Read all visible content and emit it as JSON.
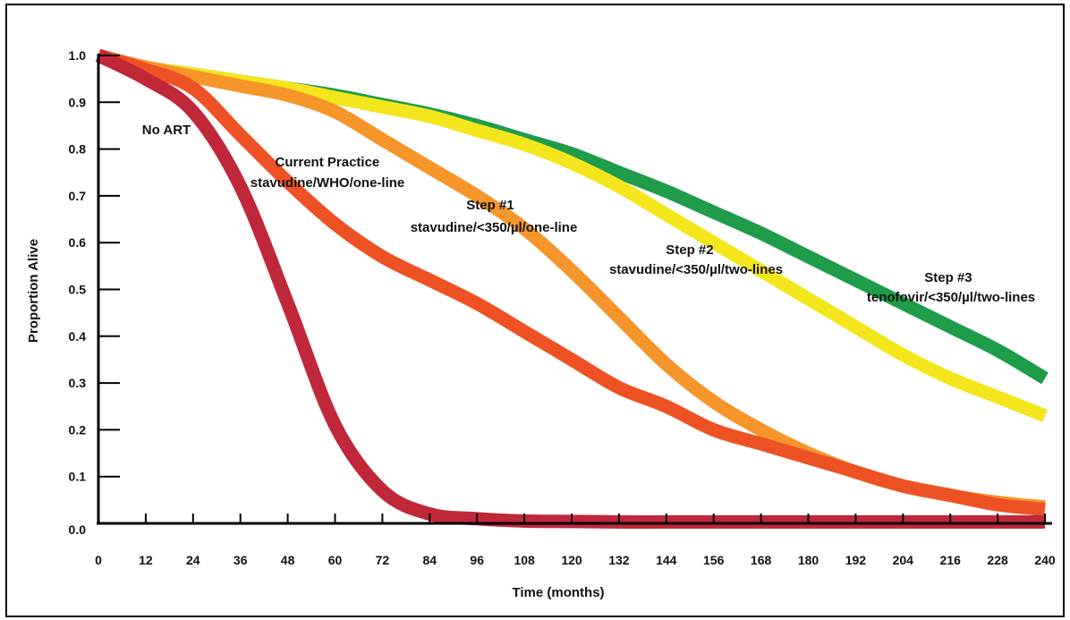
{
  "chart_data": {
    "type": "line",
    "xlabel": "Time (months)",
    "ylabel": "Proportion Alive",
    "xlim": [
      0,
      240
    ],
    "ylim": [
      0,
      1.0
    ],
    "x_ticks": [
      0,
      12,
      24,
      36,
      48,
      60,
      72,
      84,
      96,
      108,
      120,
      132,
      144,
      156,
      168,
      180,
      192,
      204,
      216,
      228,
      240
    ],
    "y_ticks": [
      "0.0",
      "0.1",
      "0.2",
      "0.3",
      "0.4",
      "0.5",
      "0.6",
      "0.7",
      "0.8",
      "0.9",
      "1.0"
    ],
    "grid": false,
    "legend": "inline labels",
    "x": [
      0,
      12,
      24,
      36,
      48,
      60,
      72,
      84,
      96,
      108,
      120,
      132,
      144,
      156,
      168,
      180,
      192,
      204,
      216,
      228,
      240
    ],
    "series": [
      {
        "label_lines": [
          "No ART"
        ],
        "color": "#c0283a",
        "values": [
          1.0,
          0.95,
          0.88,
          0.72,
          0.47,
          0.21,
          0.07,
          0.02,
          0.01,
          0.005,
          0.004,
          0.003,
          0.003,
          0.003,
          0.003,
          0.003,
          0.003,
          0.003,
          0.003,
          0.003,
          0.003
        ]
      },
      {
        "label_lines": [
          "Current Practice",
          "stavudine/WHO/one-line"
        ],
        "color": "#ee5224",
        "values": [
          1.0,
          0.97,
          0.93,
          0.83,
          0.73,
          0.64,
          0.57,
          0.52,
          0.47,
          0.41,
          0.35,
          0.29,
          0.25,
          0.2,
          0.17,
          0.14,
          0.11,
          0.08,
          0.06,
          0.04,
          0.03
        ]
      },
      {
        "label_lines": [
          "Step #1",
          "stavudine/<350/µl/one-line"
        ],
        "color": "#f5952a",
        "values": [
          1.0,
          0.975,
          0.955,
          0.935,
          0.915,
          0.88,
          0.82,
          0.76,
          0.7,
          0.63,
          0.54,
          0.44,
          0.34,
          0.26,
          0.2,
          0.15,
          0.11,
          0.08,
          0.06,
          0.045,
          0.035
        ]
      },
      {
        "label_lines": [
          "Step #2",
          "stavudine/<350/µl/two-lines"
        ],
        "color": "#f4e61c",
        "values": [
          1.0,
          0.975,
          0.96,
          0.945,
          0.93,
          0.91,
          0.89,
          0.87,
          0.84,
          0.81,
          0.77,
          0.72,
          0.66,
          0.6,
          0.54,
          0.48,
          0.42,
          0.36,
          0.31,
          0.27,
          0.23
        ]
      },
      {
        "label_lines": [
          "Step #3",
          "tenofovir/<350/µl/two-lines"
        ],
        "color": "#1e9c4a",
        "values": [
          1.0,
          0.975,
          0.96,
          0.945,
          0.93,
          0.915,
          0.895,
          0.875,
          0.85,
          0.82,
          0.79,
          0.75,
          0.71,
          0.665,
          0.62,
          0.57,
          0.52,
          0.47,
          0.42,
          0.37,
          0.31
        ]
      }
    ]
  }
}
